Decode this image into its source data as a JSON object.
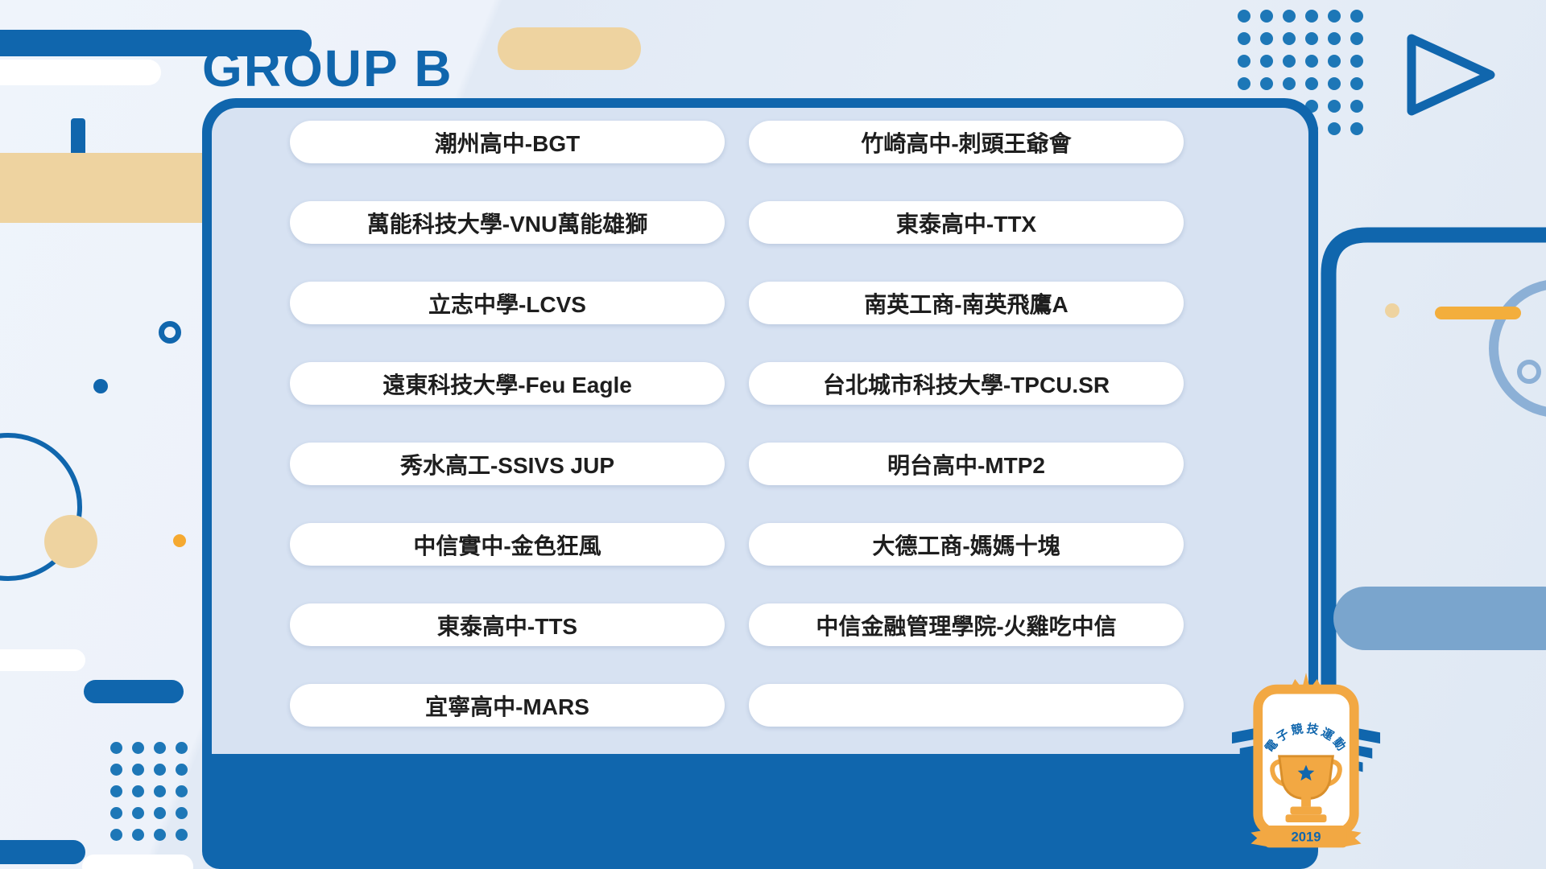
{
  "title": "GROUP B",
  "teams": {
    "left": [
      "潮州高中-BGT",
      "萬能科技大學-VNU萬能雄獅",
      "立志中學-LCVS",
      "遠東科技大學-Feu Eagle",
      "秀水高工-SSIVS JUP",
      "中信實中-金色狂風",
      "東泰高中-TTS",
      "宜寧高中-MARS"
    ],
    "right": [
      "竹崎高中-刺頭王爺會",
      "東泰高中-TTX",
      "南英工商-南英飛鷹A",
      "台北城市科技大學-TPCU.SR",
      "明台高中-MTP2",
      "大德工商-媽媽十塊",
      "中信金融管理學院-火雞吃中信",
      ""
    ]
  },
  "logo": {
    "arc_text": "電子競技運動",
    "year": "2019"
  },
  "colors": {
    "deep_blue": "#1066ad",
    "panel_bg": "#d7e2f2",
    "tan": "#eed3a0",
    "orange": "#f2a843",
    "steel_blue": "#7aa5cd",
    "dot_blue": "#1d77b7"
  }
}
